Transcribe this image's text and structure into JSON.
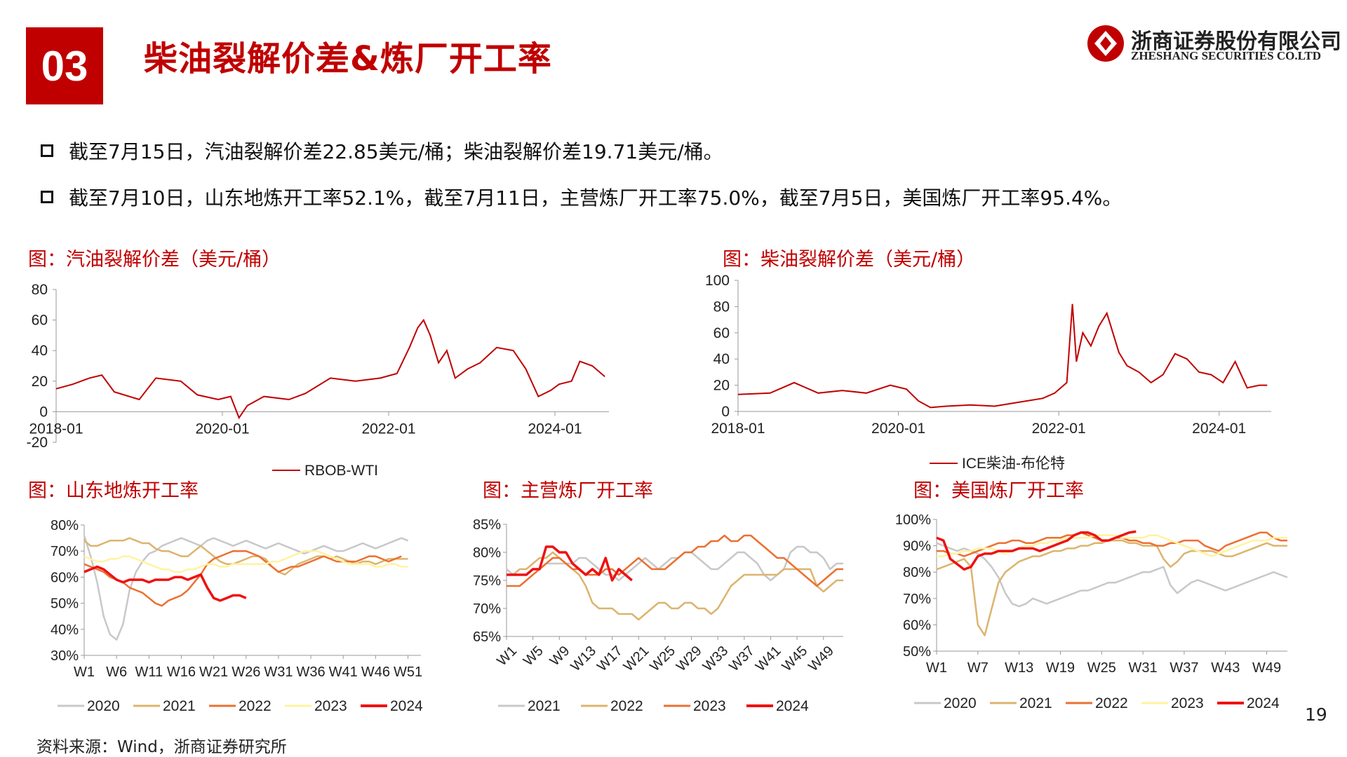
{
  "header": {
    "section_number": "03",
    "title": "柴油裂解价差&炼厂开工率"
  },
  "logo": {
    "cn": "浙商证券股份有限公司",
    "en": "ZHESHANG SECURITIES CO.LTD"
  },
  "bullets": [
    "截至7月15日，汽油裂解价差22.85美元/桶；柴油裂解价差19.71美元/桶。",
    "截至7月10日，山东地炼开工率52.1%，截至7月11日，主营炼厂开工率75.0%，截至7月5日，美国炼厂开工率95.4%。"
  ],
  "colors": {
    "accent": "#c00000",
    "gray": "#c8c8c8",
    "tan": "#dcb46e",
    "orange": "#ec7031",
    "yellow": "#fff3a0",
    "red": "#ee1111"
  },
  "source": "资料来源：Wind，浙商证券研究所",
  "page_number": "19",
  "chart_data": [
    {
      "id": "gasoline",
      "title": "图：汽油裂解价差（美元/桶）",
      "type": "line",
      "x_ticks": [
        "2018-01",
        "2020-01",
        "2022-01",
        "2024-01"
      ],
      "x_tick_values": [
        2018.0,
        2020.0,
        2022.0,
        2024.0
      ],
      "xlim": [
        2018.0,
        2024.65
      ],
      "ylim": [
        -20,
        80
      ],
      "y_ticks": [
        -20,
        0,
        20,
        40,
        60,
        80
      ],
      "legend": "top-center-below",
      "series": [
        {
          "name": "RBOB-WTI",
          "color": "#c00000",
          "x": [
            2018.0,
            2018.2,
            2018.4,
            2018.55,
            2018.7,
            2019.0,
            2019.2,
            2019.5,
            2019.7,
            2019.95,
            2020.1,
            2020.2,
            2020.3,
            2020.5,
            2020.8,
            2021.0,
            2021.3,
            2021.6,
            2021.9,
            2022.1,
            2022.25,
            2022.35,
            2022.42,
            2022.5,
            2022.6,
            2022.7,
            2022.8,
            2022.95,
            2023.1,
            2023.3,
            2023.5,
            2023.65,
            2023.8,
            2023.95,
            2024.05,
            2024.2,
            2024.3,
            2024.45,
            2024.6
          ],
          "y": [
            15,
            18,
            22,
            24,
            13,
            8,
            22,
            20,
            11,
            8,
            10,
            -4,
            4,
            10,
            8,
            12,
            22,
            20,
            22,
            25,
            42,
            55,
            60,
            50,
            32,
            40,
            22,
            28,
            32,
            42,
            40,
            28,
            10,
            14,
            18,
            20,
            33,
            30,
            23
          ]
        }
      ]
    },
    {
      "id": "diesel",
      "title": "图：柴油裂解价差（美元/桶）",
      "type": "line",
      "x_ticks": [
        "2018-01",
        "2020-01",
        "2022-01",
        "2024-01"
      ],
      "x_tick_values": [
        2018.0,
        2020.0,
        2022.0,
        2024.0
      ],
      "xlim": [
        2018.0,
        2024.65
      ],
      "ylim": [
        0,
        100
      ],
      "y_ticks": [
        0,
        20,
        40,
        60,
        80,
        100
      ],
      "legend": "bottom-center",
      "series": [
        {
          "name": "ICE柴油-布伦特",
          "color": "#c00000",
          "x": [
            2018.0,
            2018.4,
            2018.7,
            2019.0,
            2019.3,
            2019.6,
            2019.9,
            2020.1,
            2020.25,
            2020.4,
            2020.6,
            2020.9,
            2021.2,
            2021.5,
            2021.8,
            2021.95,
            2022.1,
            2022.17,
            2022.22,
            2022.3,
            2022.4,
            2022.5,
            2022.6,
            2022.75,
            2022.85,
            2023.0,
            2023.15,
            2023.3,
            2023.45,
            2023.6,
            2023.75,
            2023.9,
            2024.05,
            2024.2,
            2024.35,
            2024.5,
            2024.6
          ],
          "y": [
            13,
            14,
            22,
            14,
            16,
            14,
            20,
            17,
            8,
            3,
            4,
            5,
            4,
            7,
            10,
            14,
            22,
            82,
            38,
            60,
            50,
            65,
            75,
            45,
            35,
            30,
            22,
            28,
            44,
            40,
            30,
            28,
            22,
            38,
            18,
            20,
            20
          ]
        }
      ]
    },
    {
      "id": "shandong",
      "title": "图：山东地炼开工率",
      "type": "line",
      "categories_count": 53,
      "x_ticks": [
        "W1",
        "W6",
        "W11",
        "W16",
        "W21",
        "W26",
        "W31",
        "W36",
        "W41",
        "W46",
        "W51"
      ],
      "ylim": [
        30,
        80
      ],
      "y_ticks": [
        "30%",
        "40%",
        "50%",
        "60%",
        "70%",
        "80%"
      ],
      "legend": "bottom",
      "series": [
        {
          "name": "2020",
          "color": "#c8c8c8",
          "values": [
            76,
            68,
            58,
            45,
            38,
            36,
            42,
            55,
            62,
            66,
            69,
            70,
            72,
            73,
            74,
            75,
            74,
            73,
            72,
            74,
            75,
            74,
            73,
            72,
            73,
            74,
            73,
            72,
            71,
            72,
            73,
            72,
            71,
            70,
            69,
            70,
            71,
            72,
            71,
            70,
            70,
            71,
            72,
            73,
            72,
            71,
            72,
            73,
            74,
            75,
            74
          ]
        },
        {
          "name": "2021",
          "color": "#dcb46e",
          "values": [
            74,
            72,
            72,
            73,
            74,
            74,
            74,
            75,
            74,
            73,
            73,
            71,
            70,
            70,
            69,
            68,
            68,
            70,
            72,
            70,
            68,
            66,
            65,
            65,
            66,
            67,
            68,
            68,
            67,
            64,
            62,
            61,
            63,
            65,
            66,
            67,
            68,
            68,
            67,
            68,
            67,
            66,
            65,
            66,
            66,
            65,
            66,
            67,
            67,
            67,
            67
          ]
        },
        {
          "name": "2022",
          "color": "#ec7031",
          "values": [
            65,
            64,
            63,
            62,
            60,
            59,
            58,
            56,
            55,
            54,
            52,
            50,
            49,
            51,
            52,
            53,
            55,
            58,
            61,
            65,
            67,
            68,
            69,
            70,
            70,
            70,
            69,
            68,
            66,
            64,
            62,
            63,
            64,
            64,
            65,
            66,
            67,
            68,
            67,
            66,
            66,
            66,
            66,
            67,
            68,
            68,
            67,
            66,
            67,
            68
          ]
        },
        {
          "name": "2023",
          "color": "#fff3a0",
          "values": [
            68,
            67,
            66,
            66,
            67,
            67,
            68,
            68,
            67,
            66,
            65,
            64,
            63,
            63,
            62,
            62,
            63,
            63,
            64,
            65,
            65,
            64,
            64,
            65,
            65,
            65,
            65,
            65,
            65,
            66,
            66,
            67,
            68,
            69,
            70,
            70,
            70,
            69,
            68,
            67,
            66,
            65,
            65,
            65,
            65,
            64,
            64,
            65,
            65,
            64,
            64
          ]
        },
        {
          "name": "2024",
          "color": "#ee1111",
          "values": [
            62,
            63,
            64,
            63,
            61,
            59,
            58,
            59,
            59,
            59,
            58,
            59,
            59,
            59,
            60,
            60,
            59,
            60,
            61,
            56,
            52,
            51,
            52,
            53,
            53,
            52
          ]
        }
      ]
    },
    {
      "id": "main",
      "title": "图：主营炼厂开工率",
      "type": "line",
      "categories_count": 52,
      "x_ticks": [
        "W1",
        "W5",
        "W9",
        "W13",
        "W17",
        "W21",
        "W25",
        "W29",
        "W33",
        "W37",
        "W41",
        "W45",
        "W49"
      ],
      "ylim": [
        65,
        85
      ],
      "y_ticks": [
        "65%",
        "70%",
        "75%",
        "80%",
        "85%"
      ],
      "legend": "bottom",
      "series": [
        {
          "name": "2021",
          "color": "#c8c8c8",
          "values": [
            77,
            76,
            76,
            76,
            77,
            77,
            78,
            78,
            78,
            78,
            78,
            79,
            79,
            78,
            77,
            76,
            76,
            75,
            76,
            77,
            78,
            79,
            78,
            77,
            78,
            79,
            79,
            80,
            80,
            79,
            78,
            77,
            77,
            78,
            79,
            80,
            80,
            79,
            78,
            76,
            75,
            76,
            77,
            80,
            81,
            81,
            80,
            80,
            79,
            77,
            78,
            78
          ]
        },
        {
          "name": "2022",
          "color": "#dcb46e",
          "values": [
            76,
            76,
            77,
            77,
            78,
            79,
            79,
            80,
            79,
            78,
            77,
            76,
            74,
            71,
            70,
            70,
            70,
            69,
            69,
            69,
            68,
            69,
            70,
            71,
            71,
            70,
            70,
            71,
            71,
            70,
            70,
            69,
            70,
            72,
            74,
            75,
            76,
            76,
            76,
            76,
            76,
            76,
            77,
            77,
            77,
            77,
            77,
            74,
            73,
            74,
            75,
            75
          ]
        },
        {
          "name": "2023",
          "color": "#ec7031",
          "values": [
            74,
            74,
            74,
            75,
            76,
            77,
            78,
            79,
            79,
            78,
            77,
            77,
            76,
            76,
            76,
            77,
            77,
            76,
            77,
            78,
            79,
            78,
            77,
            77,
            77,
            78,
            79,
            80,
            80,
            81,
            81,
            82,
            82,
            83,
            82,
            82,
            83,
            83,
            82,
            81,
            80,
            79,
            79,
            78,
            77,
            76,
            75,
            74,
            75,
            76,
            77,
            77
          ]
        },
        {
          "name": "2024",
          "color": "#ee1111",
          "values": [
            76,
            76,
            76,
            76,
            77,
            77,
            81,
            81,
            80,
            80,
            78,
            77,
            76,
            77,
            76,
            79,
            75,
            77,
            76,
            75
          ]
        }
      ]
    },
    {
      "id": "us",
      "title": "图：美国炼厂开工率",
      "type": "line",
      "categories_count": 52,
      "x_ticks": [
        "W1",
        "W7",
        "W13",
        "W19",
        "W25",
        "W31",
        "W37",
        "W43",
        "W49"
      ],
      "ylim": [
        50,
        100
      ],
      "y_ticks": [
        "50%",
        "60%",
        "70%",
        "80%",
        "90%",
        "100%"
      ],
      "legend": "bottom",
      "series": [
        {
          "name": "2020",
          "color": "#c8c8c8",
          "values": [
            91,
            90,
            89,
            88,
            89,
            88,
            87,
            85,
            82,
            78,
            72,
            68,
            67,
            68,
            70,
            69,
            68,
            69,
            70,
            71,
            72,
            73,
            73,
            74,
            75,
            76,
            76,
            77,
            78,
            79,
            80,
            80,
            81,
            82,
            75,
            72,
            74,
            76,
            77,
            76,
            75,
            74,
            73,
            74,
            75,
            76,
            77,
            78,
            79,
            80,
            79,
            78
          ]
        },
        {
          "name": "2021",
          "color": "#dcb46e",
          "values": [
            81,
            82,
            83,
            84,
            85,
            82,
            60,
            56,
            66,
            76,
            80,
            82,
            84,
            85,
            86,
            86,
            87,
            88,
            88,
            89,
            89,
            90,
            90,
            91,
            91,
            92,
            92,
            92,
            91,
            91,
            90,
            90,
            90,
            85,
            82,
            84,
            87,
            88,
            88,
            88,
            88,
            87,
            86,
            86,
            87,
            88,
            89,
            90,
            91,
            90,
            90,
            90
          ]
        },
        {
          "name": "2022",
          "color": "#ec7031",
          "values": [
            88,
            88,
            87,
            87,
            86,
            87,
            88,
            89,
            90,
            91,
            91,
            92,
            92,
            91,
            91,
            92,
            93,
            93,
            93,
            94,
            94,
            95,
            94,
            93,
            92,
            92,
            93,
            93,
            92,
            92,
            91,
            91,
            90,
            90,
            91,
            91,
            92,
            92,
            92,
            90,
            89,
            88,
            90,
            91,
            92,
            93,
            94,
            95,
            95,
            93,
            92,
            92
          ]
        },
        {
          "name": "2023",
          "color": "#fff3a0",
          "values": [
            86,
            86,
            87,
            87,
            88,
            88,
            89,
            89,
            89,
            88,
            87,
            88,
            89,
            90,
            90,
            91,
            91,
            92,
            92,
            93,
            93,
            93,
            93,
            94,
            94,
            94,
            94,
            93,
            93,
            93,
            93,
            94,
            94,
            93,
            92,
            91,
            90,
            89,
            88,
            87,
            86,
            87,
            88,
            89,
            90,
            91,
            92,
            92,
            92,
            93,
            93,
            93
          ]
        },
        {
          "name": "2024",
          "color": "#ee1111",
          "values": [
            93,
            92,
            85,
            83,
            81,
            82,
            86,
            87,
            87,
            88,
            88,
            88,
            89,
            89,
            89,
            88,
            89,
            90,
            91,
            92,
            94,
            95,
            95,
            94,
            92,
            92,
            93,
            94,
            95,
            95.4
          ]
        }
      ]
    }
  ]
}
